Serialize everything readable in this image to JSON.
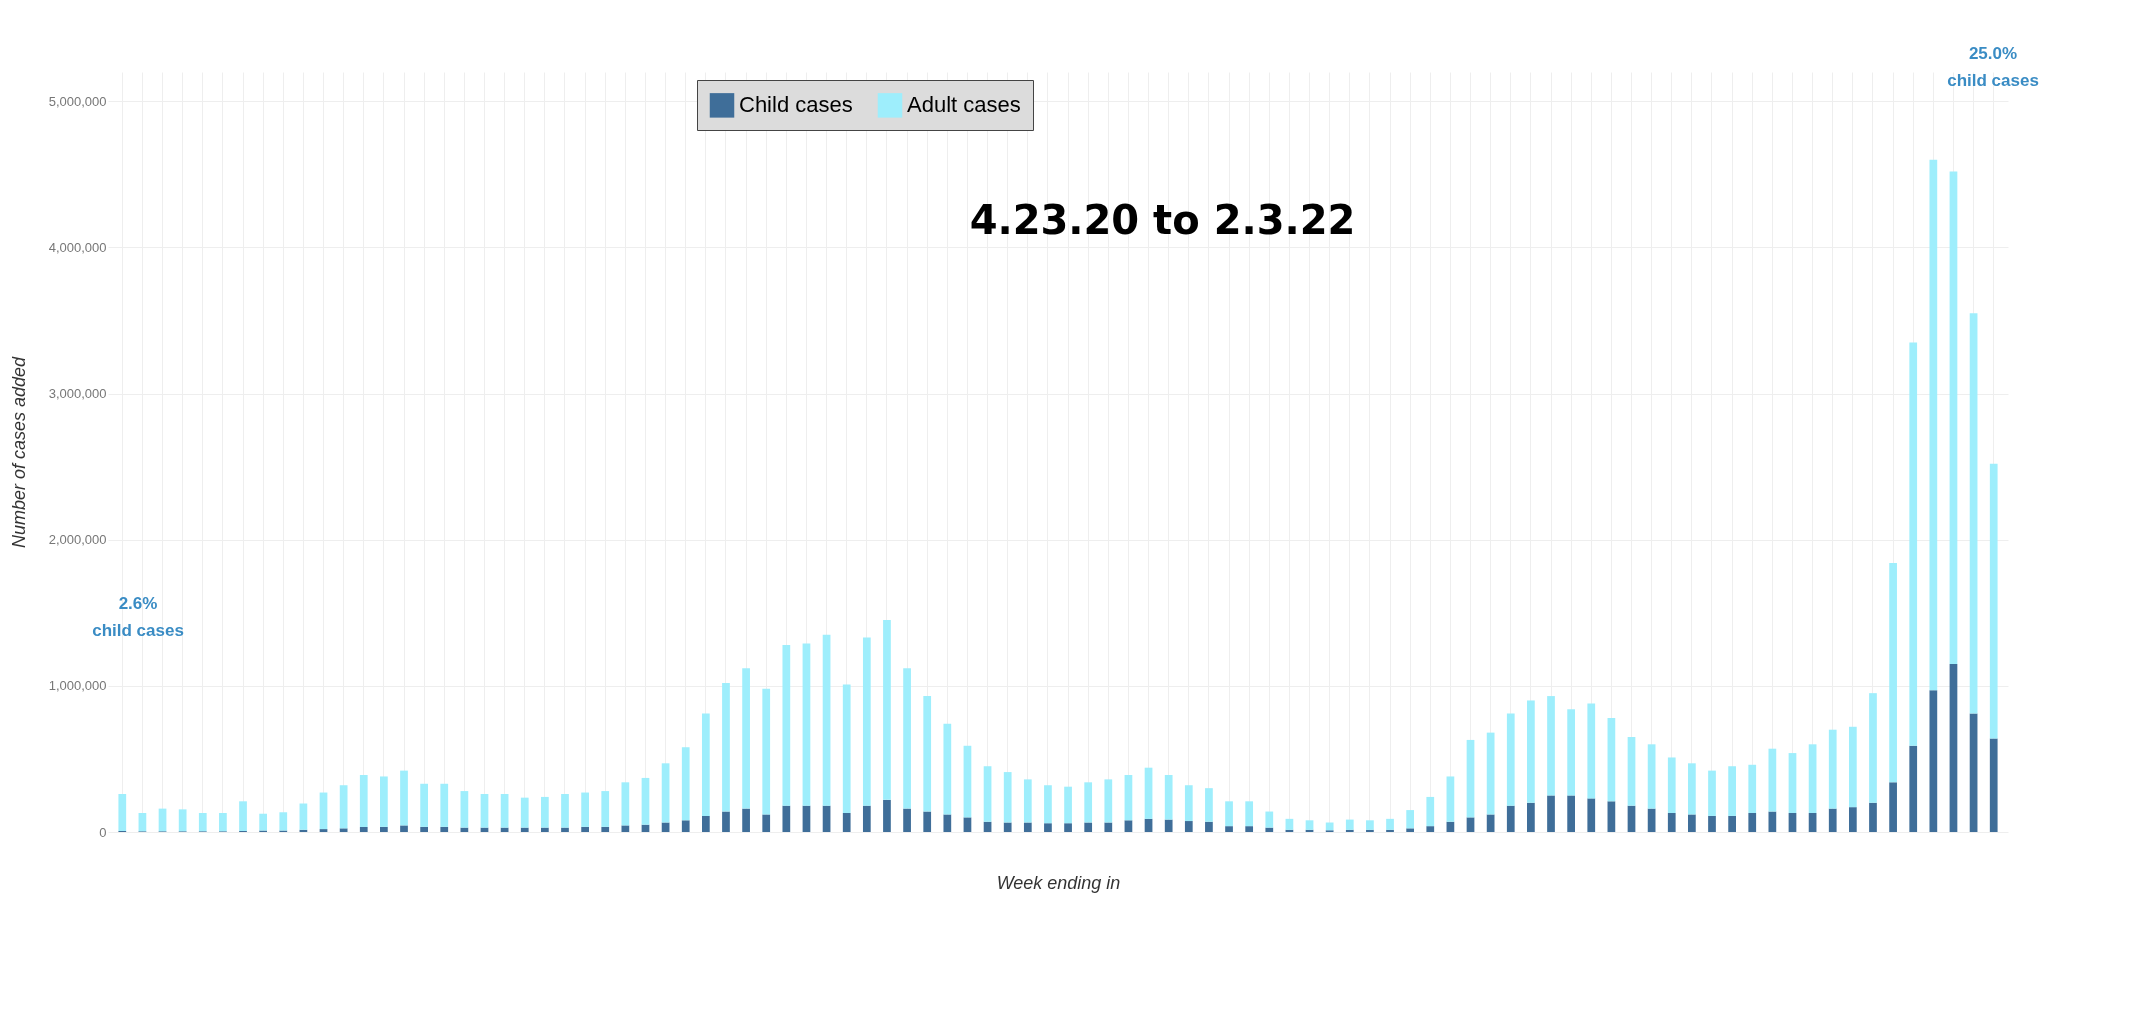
{
  "chart_data": {
    "type": "bar",
    "stacked": true,
    "xlabel": "Week ending in",
    "ylabel": "Number of cases added",
    "categories": [
      null,
      null,
      null,
      null,
      null,
      null,
      null,
      null,
      null,
      null,
      null,
      null,
      null,
      null,
      null,
      null,
      null,
      null,
      null,
      null,
      null,
      null,
      null,
      null,
      null,
      null,
      null,
      null,
      null,
      null,
      null,
      null,
      null,
      null,
      null,
      null,
      null,
      null,
      null,
      null,
      null,
      null,
      null,
      null,
      null,
      null,
      null,
      null,
      null,
      null,
      null,
      null,
      null,
      null,
      null,
      null,
      null,
      null,
      null,
      null,
      null,
      null,
      null,
      null,
      null,
      null,
      null,
      null,
      null,
      null,
      null,
      null,
      null,
      null,
      null,
      null,
      null,
      null,
      null,
      null,
      null,
      null,
      null,
      null,
      null,
      null,
      null,
      null,
      null,
      null,
      null,
      null,
      null,
      null
    ],
    "series": [
      {
        "name": "Child cases",
        "color": "#3f6e99",
        "values": [
          7000,
          5000,
          5000,
          5000,
          5000,
          5000,
          7000,
          10000,
          10000,
          15000,
          20000,
          25000,
          35000,
          35000,
          45000,
          35000,
          35000,
          30000,
          30000,
          30000,
          30000,
          30000,
          30000,
          35000,
          35000,
          45000,
          50000,
          65000,
          80000,
          110000,
          140000,
          160000,
          120000,
          180000,
          180000,
          180000,
          130000,
          180000,
          220000,
          160000,
          140000,
          120000,
          100000,
          70000,
          65000,
          65000,
          60000,
          60000,
          65000,
          65000,
          80000,
          90000,
          85000,
          75000,
          70000,
          40000,
          40000,
          30000,
          15000,
          15000,
          12000,
          15000,
          15000,
          15000,
          25000,
          40000,
          70000,
          100000,
          120000,
          180000,
          200000,
          250000,
          250000,
          230000,
          210000,
          180000,
          160000,
          130000,
          120000,
          110000,
          110000,
          130000,
          140000,
          130000,
          130000,
          160000,
          170000,
          200000,
          340000,
          590000,
          970000,
          1150000,
          810000,
          640000
        ]
      },
      {
        "name": "Adult cases",
        "color": "#9eeefc",
        "values": [
          253000,
          125000,
          155000,
          150000,
          125000,
          125000,
          203000,
          115000,
          125000,
          180000,
          250000,
          295000,
          355000,
          345000,
          375000,
          295000,
          295000,
          250000,
          230000,
          230000,
          205000,
          210000,
          230000,
          235000,
          245000,
          295000,
          320000,
          405000,
          500000,
          700000,
          880000,
          960000,
          860000,
          1100000,
          1110000,
          1170000,
          880000,
          1150000,
          1230000,
          960000,
          790000,
          620000,
          490000,
          380000,
          345000,
          295000,
          260000,
          250000,
          275000,
          295000,
          310000,
          350000,
          305000,
          245000,
          230000,
          170000,
          170000,
          110000,
          75000,
          65000,
          53000,
          70000,
          65000,
          75000,
          125000,
          200000,
          310000,
          530000,
          560000,
          630000,
          700000,
          680000,
          590000,
          650000,
          570000,
          470000,
          440000,
          380000,
          350000,
          310000,
          340000,
          330000,
          430000,
          410000,
          470000,
          540000,
          550000,
          750000,
          1500000,
          2760000,
          3630000,
          3370000,
          2740000,
          1880000
        ]
      }
    ],
    "ylim": [
      0,
      5200000
    ],
    "yticks": [
      {
        "value": 0,
        "label": "0"
      },
      {
        "value": 1000000,
        "label": "1,000,000"
      },
      {
        "value": 2000000,
        "label": "2,000,000"
      },
      {
        "value": 3000000,
        "label": "3,000,000"
      },
      {
        "value": 4000000,
        "label": "4,000,000"
      },
      {
        "value": 5000000,
        "label": "5,000,000"
      }
    ],
    "grid": true,
    "legend": "top",
    "annotations": [
      "2.6%\nchild cases",
      "25.0%\nchild cases",
      "4.23.20 to 2.3.22"
    ]
  }
}
